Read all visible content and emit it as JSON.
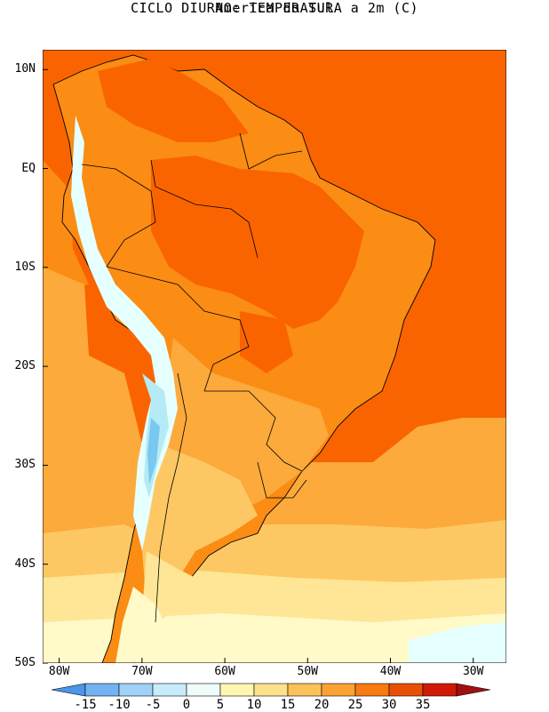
{
  "title": "CICLO DIURNO: TEMPERATURA a 2m (C)",
  "subtitle": "America do Sul",
  "lat_ticks": [
    {
      "label": "10N",
      "lat": 10
    },
    {
      "label": "EQ",
      "lat": 0
    },
    {
      "label": "10S",
      "lat": -10
    },
    {
      "label": "20S",
      "lat": -20
    },
    {
      "label": "30S",
      "lat": -30
    },
    {
      "label": "40S",
      "lat": -40
    },
    {
      "label": "50S",
      "lat": -50
    }
  ],
  "lon_ticks": [
    {
      "label": "80W",
      "lon": -80
    },
    {
      "label": "70W",
      "lon": -70
    },
    {
      "label": "60W",
      "lon": -60
    },
    {
      "label": "50W",
      "lon": -50
    },
    {
      "label": "40W",
      "lon": -40
    },
    {
      "label": "30W",
      "lon": -30
    }
  ],
  "extent": {
    "lon": [
      -82,
      -26
    ],
    "lat": [
      -50,
      12
    ]
  },
  "colorbar": {
    "labels": [
      "-15",
      "-10",
      "-5",
      "0",
      "5",
      "10",
      "15",
      "20",
      "25",
      "30",
      "35"
    ],
    "colors": [
      "#4a96e8",
      "#72b4f2",
      "#a0d2f8",
      "#c8ecfa",
      "#eefcfa",
      "#fff7b0",
      "#fde08a",
      "#fcc25a",
      "#fba235",
      "#f87a12",
      "#e85008",
      "#d01a06",
      "#a01010"
    ]
  },
  "field_colors": {
    "t30": "#fa6400",
    "t25": "#fb8c14",
    "t20": "#fcaa3c",
    "t15": "#fdc864",
    "t10": "#fee696",
    "t5": "#fffac8",
    "t0": "#e6ffff",
    "tm5": "#b4ebf5",
    "tm10": "#78c8f0"
  }
}
